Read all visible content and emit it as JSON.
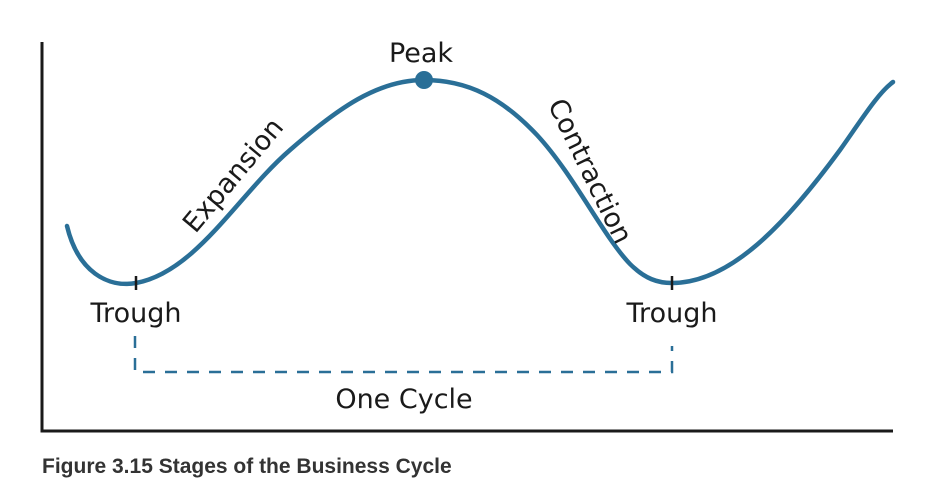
{
  "labels": {
    "peak": "Peak",
    "expansion": "Expansion",
    "contraction": "Contraction",
    "trough_left": "Trough",
    "trough_right": "Trough",
    "one_cycle": "One Cycle"
  },
  "caption": "Figure 3.15 Stages of the Business Cycle",
  "colors": {
    "curve": "#2a6f97",
    "axis": "#1a1a1a",
    "text": "#1a1a1a"
  }
}
